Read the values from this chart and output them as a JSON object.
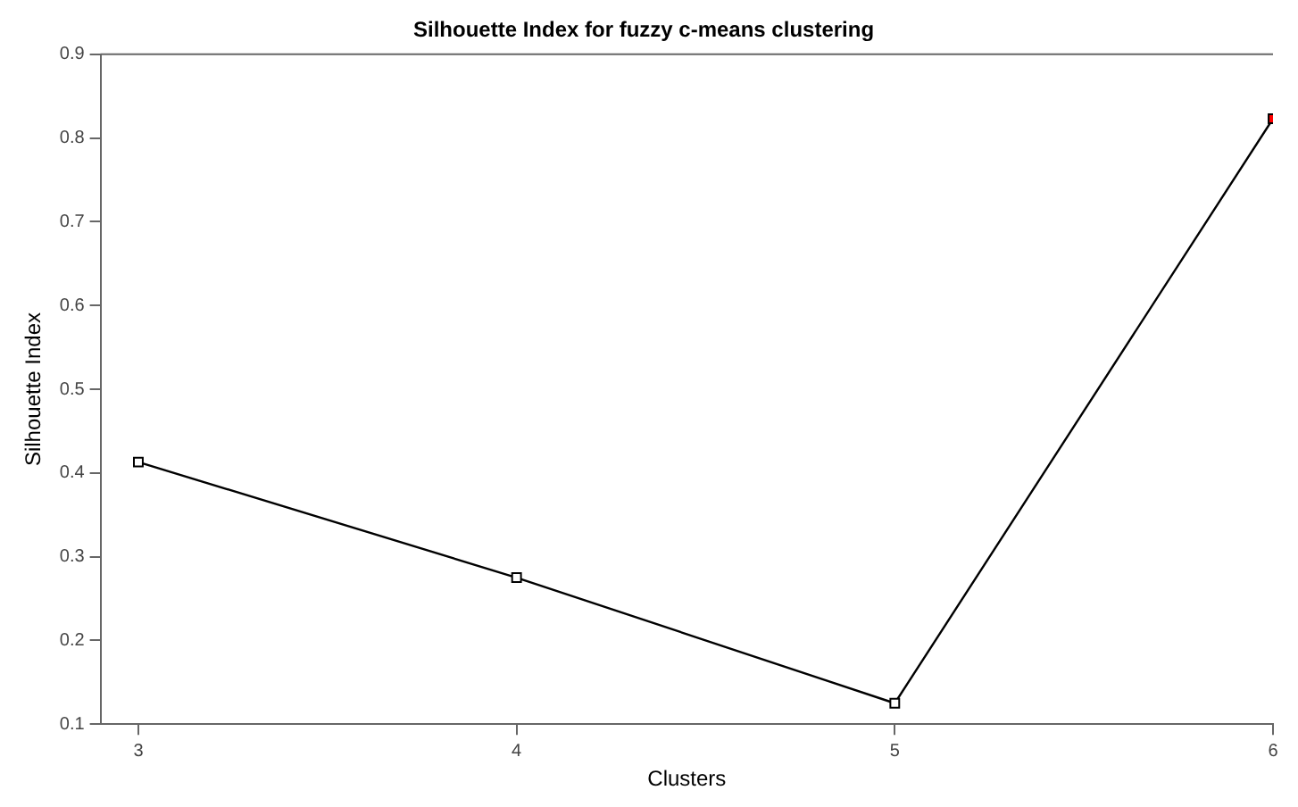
{
  "chart_data": {
    "type": "line",
    "title": "Silhouette Index for fuzzy c-means clustering",
    "xlabel": "Clusters",
    "ylabel": "Silhouette Index",
    "x": [
      3,
      4,
      5,
      6
    ],
    "values": [
      0.413,
      0.275,
      0.125,
      0.823
    ],
    "color": "#000000",
    "colors": [
      "#ffffff",
      "#ffffff",
      "#ffffff",
      "#ff0000"
    ],
    "xlim": [
      2.9,
      6
    ],
    "xticks": [
      3,
      4,
      5,
      6
    ],
    "ylim": [
      0.1,
      0.9
    ],
    "yticks": [
      0.1,
      0.2,
      0.3,
      0.4,
      0.5,
      0.6,
      0.7,
      0.8,
      0.9
    ],
    "marker": "square",
    "line_style": "solid",
    "grid": false,
    "legend": false
  }
}
